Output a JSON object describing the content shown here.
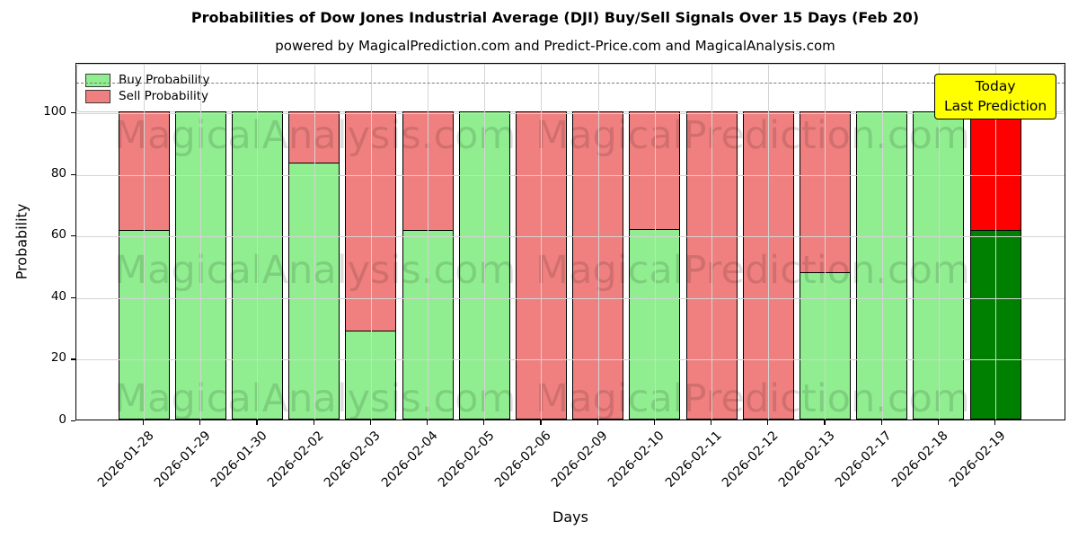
{
  "title": "Probabilities of Dow Jones Industrial Average (DJI) Buy/Sell Signals Over 15 Days (Feb 20)",
  "subtitle": "powered by MagicalPrediction.com and Predict-Price.com and MagicalAnalysis.com",
  "legend": {
    "items": [
      {
        "label": "Buy Probability",
        "color": "#90EE90"
      },
      {
        "label": "Sell Probability",
        "color": "#F08080"
      }
    ]
  },
  "annotation_box": {
    "line1": "Today",
    "line2": "Last Prediction",
    "bg_color": "#FFFF00"
  },
  "axes": {
    "ylabel": "Probability",
    "xlabel": "Days",
    "yticks": [
      0,
      20,
      40,
      60,
      80,
      100
    ],
    "ylim": [
      0,
      116
    ],
    "dashed_threshold_y": 110,
    "grid": true
  },
  "watermarks": {
    "left_text": "MagicalAnalysis.com",
    "right_text": "MagicalPrediction.com"
  },
  "chart_data": {
    "type": "bar",
    "stacked": true,
    "title": "Probabilities of Dow Jones Industrial Average (DJI) Buy/Sell Signals Over 15 Days (Feb 20)",
    "xlabel": "Days",
    "ylabel": "Probability",
    "ylim": [
      0,
      116
    ],
    "legend_position": "upper left",
    "categories": [
      "2026-01-28",
      "2026-01-29",
      "2026-01-30",
      "2026-02-02",
      "2026-02-03",
      "2026-02-04",
      "2026-02-05",
      "2026-02-06",
      "2026-02-09",
      "2026-02-10",
      "2026-02-11",
      "2026-02-12",
      "2026-02-13",
      "2026-02-17",
      "2026-02-18",
      "2026-02-19"
    ],
    "series": [
      {
        "name": "Buy Probability",
        "color": "#90EE90",
        "values": [
          61.5,
          100,
          100,
          83.5,
          29,
          61.5,
          100,
          0,
          0,
          62,
          0,
          0,
          48,
          100,
          100,
          61.5
        ]
      },
      {
        "name": "Sell Probability",
        "color": "#F08080",
        "values": [
          38.5,
          0,
          0,
          16.5,
          71,
          38.5,
          0,
          100,
          100,
          38,
          100,
          100,
          52,
          0,
          0,
          38.5
        ]
      }
    ],
    "today_bar": {
      "category": "2026-02-19",
      "buy_color": "#008000",
      "sell_color": "#FF0000",
      "label": "Today Last Prediction"
    },
    "bar_edge_color": "#000000"
  }
}
